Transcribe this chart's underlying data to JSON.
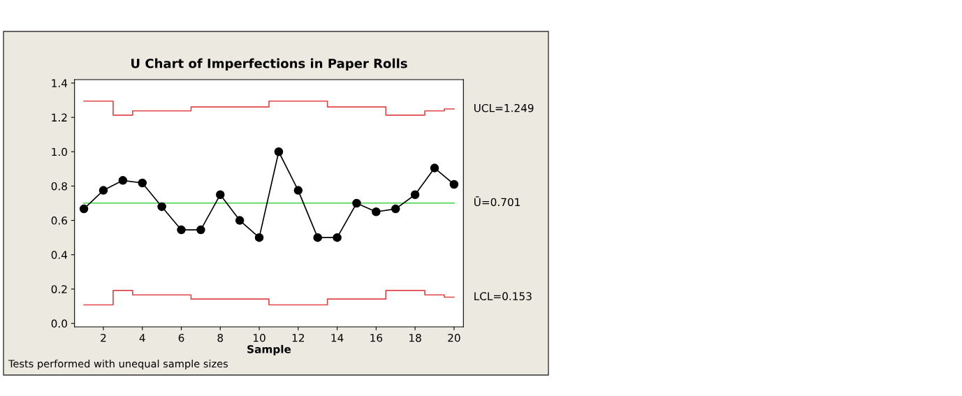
{
  "chart_data": {
    "type": "line",
    "title": "U Chart of Imperfections in Paper Rolls",
    "xlabel": "Sample",
    "x": [
      1,
      2,
      3,
      4,
      5,
      6,
      7,
      8,
      9,
      10,
      11,
      12,
      13,
      14,
      15,
      16,
      17,
      18,
      19,
      20
    ],
    "series": [
      {
        "color": "#000000",
        "marker": "circle",
        "values": [
          0.667,
          0.775,
          0.833,
          0.818,
          0.68,
          0.545,
          0.545,
          0.75,
          0.6,
          0.5,
          1.0,
          0.775,
          0.5,
          0.5,
          0.7,
          0.65,
          0.667,
          0.75,
          0.905,
          0.81
        ]
      },
      {
        "type": "step",
        "name": "UCL=1.249",
        "color": "#e0454a",
        "marker": "none",
        "values": [
          1.295,
          1.295,
          1.213,
          1.238,
          1.238,
          1.238,
          1.261,
          1.261,
          1.261,
          1.261,
          1.295,
          1.295,
          1.295,
          1.261,
          1.261,
          1.261,
          1.213,
          1.213,
          1.238,
          1.249
        ]
      },
      {
        "type": "step",
        "name": "LCL=0.153",
        "color": "#e0454a",
        "marker": "none",
        "values": [
          0.108,
          0.108,
          0.192,
          0.166,
          0.166,
          0.166,
          0.142,
          0.142,
          0.142,
          0.142,
          0.108,
          0.108,
          0.108,
          0.142,
          0.142,
          0.142,
          0.192,
          0.192,
          0.166,
          0.153
        ]
      }
    ],
    "ref_lines": [
      {
        "axis": "y",
        "value": 0.701,
        "label": "Ū=0.701",
        "color": "#66dd66"
      }
    ],
    "xlim": [
      0.52,
      20.48
    ],
    "ylim": [
      -0.02,
      1.42
    ],
    "xticks": [
      2,
      4,
      6,
      8,
      10,
      12,
      14,
      16,
      18,
      20
    ],
    "yticks": [
      {
        "value": 0.0,
        "label": "0.0"
      },
      {
        "value": 0.2,
        "label": "0.2"
      },
      {
        "value": 0.4,
        "label": "0.4"
      },
      {
        "value": 0.6,
        "label": "0.6"
      },
      {
        "value": 0.8,
        "label": "0.8"
      },
      {
        "value": 1.0,
        "label": "1.0"
      },
      {
        "value": 1.2,
        "label": "1.2"
      },
      {
        "value": 1.4,
        "label": "1.4"
      }
    ],
    "grid": false,
    "legend": false,
    "annotations": [
      "Tests performed with unequal sample sizes"
    ]
  }
}
